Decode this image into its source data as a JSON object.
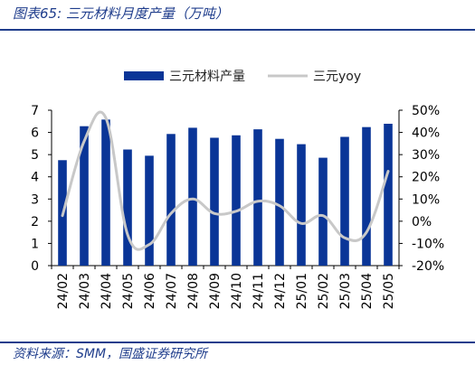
{
  "header": {
    "title": "图表65:  三元材料月度产量（万吨）"
  },
  "footer": {
    "source": "资料来源：SMM，国盛证券研究所"
  },
  "colors": {
    "bar": "#0a3597",
    "line": "#c8c8c8",
    "text": "#1f3d8c"
  },
  "chart_data": {
    "type": "bar",
    "categories": [
      "24/02",
      "24/03",
      "24/04",
      "24/05",
      "24/06",
      "24/07",
      "24/08",
      "24/09",
      "24/10",
      "24/11",
      "24/12",
      "25/01",
      "25/02",
      "25/03",
      "25/04",
      "25/05"
    ],
    "series": [
      {
        "name": "三元材料产量",
        "type": "bar",
        "axis": "left",
        "values": [
          4.75,
          6.28,
          6.58,
          5.23,
          4.95,
          5.93,
          6.21,
          5.76,
          5.87,
          6.14,
          5.71,
          5.47,
          4.86,
          5.8,
          6.24,
          6.39
        ]
      },
      {
        "name": "三元yoy",
        "type": "line",
        "axis": "right",
        "values": [
          2.5,
          36.0,
          46.5,
          -6.0,
          -10.5,
          3.5,
          10.0,
          3.5,
          4.5,
          9.0,
          7.0,
          -1.0,
          2.5,
          -7.5,
          -5.0,
          22.5
        ]
      }
    ],
    "y_left": {
      "min": 0,
      "max": 7,
      "ticks": [
        "0",
        "1",
        "2",
        "3",
        "4",
        "5",
        "6",
        "7"
      ]
    },
    "y_right": {
      "min": -20,
      "max": 50,
      "ticks": [
        "-20%",
        "-10%",
        "0%",
        "10%",
        "20%",
        "30%",
        "40%",
        "50%"
      ]
    },
    "legend": {
      "position": "top-center"
    },
    "grid": false
  }
}
